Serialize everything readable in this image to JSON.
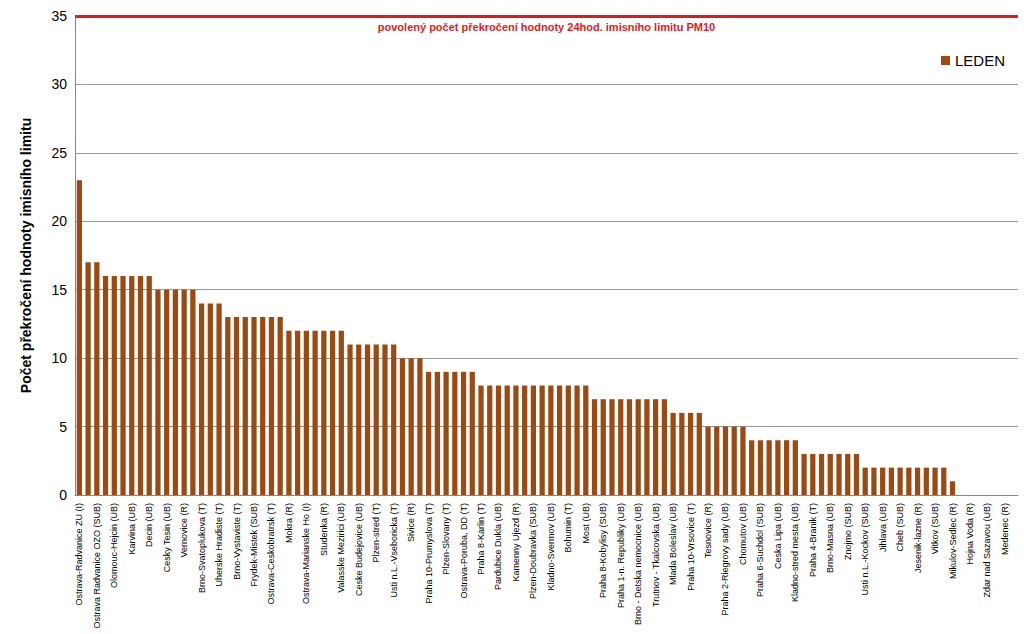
{
  "chart_data": {
    "type": "bar",
    "y_label": "Počet překročení hodnoty imisního limitu",
    "categories": [
      "Ostrava-Radvanice ZU (I)",
      null,
      "Ostrava Radvanice OZO (SUB)",
      null,
      "Olomouc-Hejcin (UB)",
      null,
      "Karvina (UB)",
      null,
      "Decin (UB)",
      null,
      "Cesky Tesin (UB)",
      null,
      "Vernovice (R)",
      null,
      "Brno-Svatoplukova (T)",
      null,
      "Uherske Hradiste (T)",
      null,
      "Brno-Vystaviste (T)",
      null,
      "Frydek-Mistek (SUB)",
      null,
      "Ostrava-Ceskobratrsk (T)",
      null,
      "Mokra (R)",
      null,
      "Ostrava-Marianske Ho (I)",
      null,
      "Studenka (R)",
      null,
      "Valasske Mezirici (UB)",
      null,
      "Ceske Budejovice (UB)",
      null,
      "Plzen-stred (T)",
      null,
      "Usti n.L.-Vseboricka (T)",
      null,
      "Sivice (R)",
      null,
      "Praha 10-Prumyslova (T)",
      null,
      "Plzen-Slovany (T)",
      null,
      "Ostrava-Poruba, DD (T)",
      null,
      "Praha 8-Karlin (T)",
      null,
      "Pardubice Dukla (UB)",
      null,
      "Kamenny Ujezd (R)",
      null,
      "Plzen-Doubravka (SUB)",
      null,
      "Kladno-Svermov (UB)",
      null,
      "Bohumin (T)",
      null,
      "Most (UB)",
      null,
      "Praha 8-Kobylisy (SUB)",
      null,
      "Praha 1-n. Republiky (UB)",
      null,
      "Brno - Detska nemocnice (UB)",
      null,
      "Trutnov - Tkalcovska (UB)",
      null,
      "Mlada Boleslav (UB)",
      null,
      "Praha 10-Vrsovice (T)",
      null,
      "Tesnovice (R)",
      null,
      "Praha 2-Riegrovy sady (UB)",
      null,
      "Chomutov (UB)",
      null,
      "Praha 6-Suchdol (SUB)",
      null,
      "Ceska Lipa (UB)",
      null,
      "Kladno-stred mesta (UB)",
      null,
      "Praha 4-Branik (T)",
      null,
      "Brno-Masna (UB)",
      null,
      "Znojmo (SUB)",
      null,
      "Usti n.L.-Kockov (SUB)",
      null,
      "Jihlava (UB)",
      null,
      "Cheb (SUB)",
      null,
      "Jesenik-lazne (R)",
      null,
      "Vitkov (SUB)",
      null,
      "Mikulov-Sedlec (R)",
      null,
      "Hojna Voda (R)",
      null,
      "Zdar nad Sazavou (UB)",
      null,
      "Medenec (R)",
      null
    ],
    "series": [
      {
        "name": "LEDEN",
        "color": "#9a4a12",
        "values": [
          23,
          17,
          17,
          16,
          16,
          16,
          16,
          16,
          16,
          15,
          15,
          15,
          15,
          15,
          14,
          14,
          14,
          13,
          13,
          13,
          13,
          13,
          13,
          13,
          12,
          12,
          12,
          12,
          12,
          12,
          12,
          11,
          11,
          11,
          11,
          11,
          11,
          10,
          10,
          10,
          9,
          9,
          9,
          9,
          9,
          9,
          8,
          8,
          8,
          8,
          8,
          8,
          8,
          8,
          8,
          8,
          8,
          8,
          8,
          7,
          7,
          7,
          7,
          7,
          7,
          7,
          7,
          7,
          6,
          6,
          6,
          6,
          5,
          5,
          5,
          5,
          5,
          4,
          4,
          4,
          4,
          4,
          4,
          3,
          3,
          3,
          3,
          3,
          3,
          3,
          2,
          2,
          2,
          2,
          2,
          2,
          2,
          2,
          2,
          2,
          1,
          0,
          0,
          0,
          0,
          0,
          0,
          0
        ]
      }
    ],
    "reference_line": {
      "value": 35,
      "label": "povolený počet překročení hodnoty 24hod. imisního limitu PM10",
      "color": "#e31a1c"
    },
    "ylim": [
      0,
      35
    ],
    "yticks": [
      0,
      5,
      10,
      15,
      20,
      25,
      30,
      35
    ],
    "grid": true,
    "legend": "top-right"
  }
}
